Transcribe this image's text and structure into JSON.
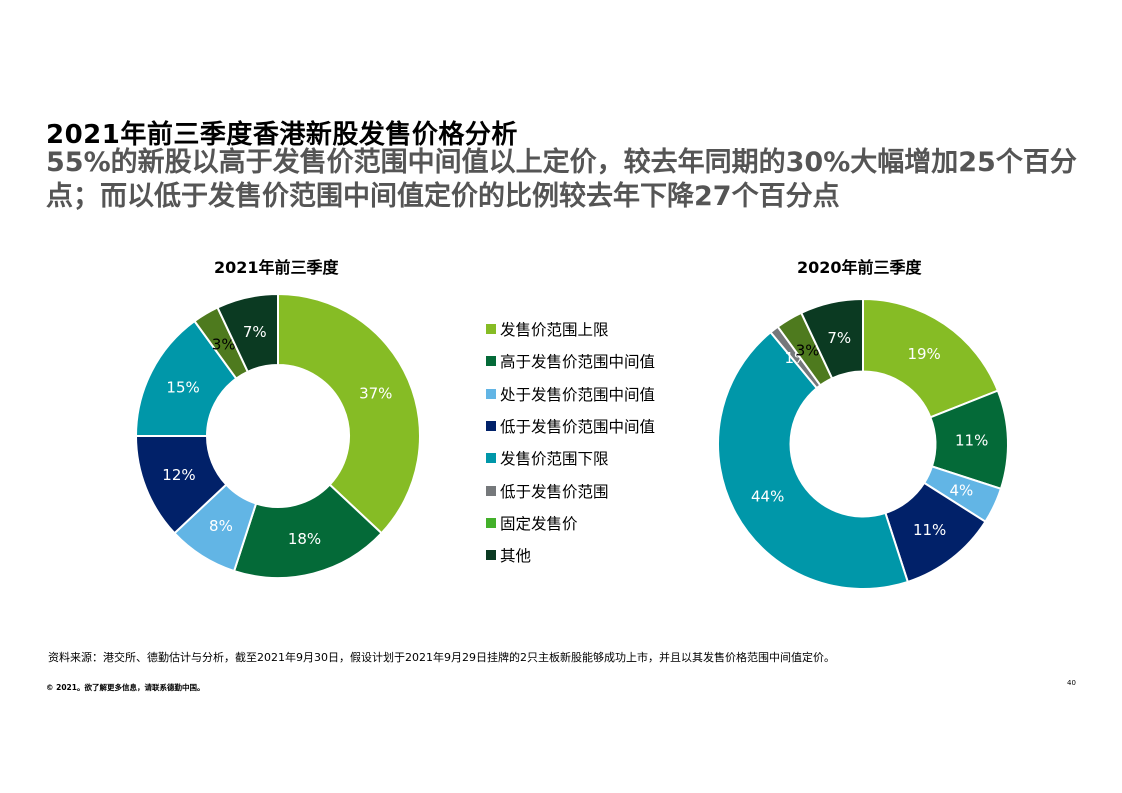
{
  "page": {
    "title": "2021年前三季度香港新股发售价格分析",
    "subtitle": "55%的新股以高于发售价范围中间值以上定价，较去年同期的30%大幅增加25个百分点；而以低于发售价范围中间值定价的比例较去年下降27个百分点",
    "source": "资料来源：港交所、德勤估计与分析，截至2021年9月30日，假设计划于2021年9月29日挂牌的2只主板新股能够成功上市，并且以其发售价格范围中间值定价。",
    "copyright": "© 2021。欲了解更多信息，请联系德勤中国。",
    "page_number": "40"
  },
  "legend": [
    {
      "label": "发售价范围上限",
      "color": "#86BC25",
      "icon": "square"
    },
    {
      "label": "高于发售价范围中间值",
      "color": "#046A38",
      "icon": "square"
    },
    {
      "label": "处于发售价范围中间值",
      "color": "#62B5E5",
      "icon": "square"
    },
    {
      "label": "低于发售价范围中间值",
      "color": "#012169",
      "icon": "square"
    },
    {
      "label": "发售价范围下限",
      "color": "#0097A9",
      "icon": "square"
    },
    {
      "label": "低于发售价范围",
      "color": "#75787B",
      "icon": "square"
    },
    {
      "label": "固定发售价",
      "color": "#43B02A",
      "icon": "square"
    },
    {
      "label": "其他",
      "color": "#0B3A22",
      "icon": "square"
    }
  ],
  "chart_data": [
    {
      "type": "pie",
      "title": "2021年前三季度",
      "categories": [
        "发售价范围上限",
        "高于发售价范围中间值",
        "处于发售价范围中间值",
        "低于发售价范围中间值",
        "发售价范围下限",
        "低于发售价范围",
        "固定发售价",
        "其他"
      ],
      "values": [
        37,
        18,
        8,
        12,
        15,
        0,
        3,
        7
      ],
      "labels": [
        "37%",
        "18%",
        "8%",
        "12%",
        "15%",
        "",
        "3%",
        "7%"
      ],
      "colors": [
        "#86BC25",
        "#046A38",
        "#62B5E5",
        "#012169",
        "#0097A9",
        "#75787B",
        "#4E7A1E",
        "#0B3A22"
      ],
      "hole": 0.5
    },
    {
      "type": "pie",
      "title": "2020年前三季度",
      "categories": [
        "发售价范围上限",
        "高于发售价范围中间值",
        "处于发售价范围中间值",
        "低于发售价范围中间值",
        "发售价范围下限",
        "低于发售价范围",
        "固定发售价",
        "其他"
      ],
      "values": [
        19,
        11,
        4,
        11,
        44,
        1,
        3,
        7
      ],
      "labels": [
        "19%",
        "11%",
        "4%",
        "11%",
        "44%",
        "1%",
        "3%",
        "7%"
      ],
      "colors": [
        "#86BC25",
        "#046A38",
        "#62B5E5",
        "#012169",
        "#0097A9",
        "#75787B",
        "#4E7A1E",
        "#0B3A22"
      ],
      "hole": 0.5
    }
  ]
}
